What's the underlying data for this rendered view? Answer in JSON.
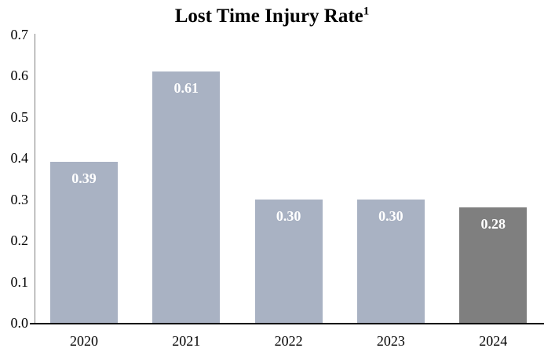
{
  "chart_data": {
    "type": "bar",
    "title": "Lost Time Injury Rate",
    "title_superscript": "1",
    "categories": [
      "2020",
      "2021",
      "2022",
      "2023",
      "2024"
    ],
    "values": [
      0.39,
      0.61,
      0.3,
      0.3,
      0.28
    ],
    "value_labels": [
      "0.39",
      "0.61",
      "0.30",
      "0.30",
      "0.28"
    ],
    "bar_colors": [
      "#a9b2c3",
      "#a9b2c3",
      "#a9b2c3",
      "#a9b2c3",
      "#7f7f7f"
    ],
    "value_label_color": "#ffffff",
    "xlabel": "",
    "ylabel": "",
    "ylim": [
      0,
      0.7
    ],
    "y_ticks": [
      "0.0",
      "0.1",
      "0.2",
      "0.3",
      "0.4",
      "0.5",
      "0.6",
      "0.7"
    ],
    "grid": "off",
    "legend": "none",
    "y_axis_line_color": "#808080",
    "x_axis_line_color": "#000000",
    "background_color": "#ffffff",
    "text_color": "#000000"
  }
}
